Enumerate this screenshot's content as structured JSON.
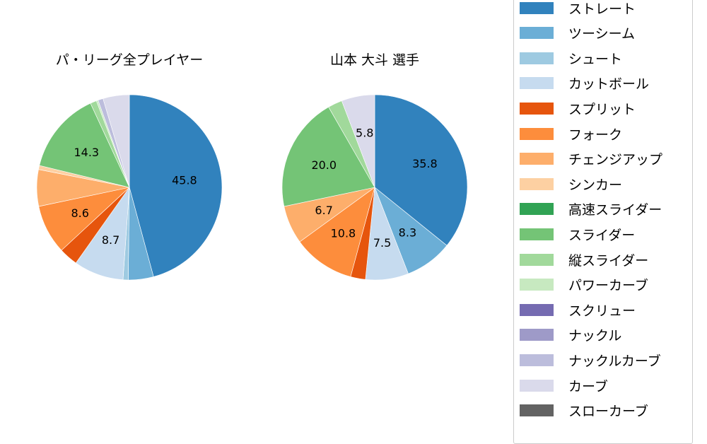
{
  "chart_data": [
    {
      "type": "pie",
      "title": "パ・リーグ全プレイヤー",
      "categories": [
        "ストレート",
        "ツーシーム",
        "シュート",
        "カットボール",
        "スプリット",
        "フォーク",
        "チェンジアップ",
        "シンカー",
        "高速スライダー",
        "スライダー",
        "縦スライダー",
        "パワーカーブ",
        "スクリュー",
        "ナックル",
        "ナックルカーブ",
        "カーブ",
        "スローカーブ"
      ],
      "values": [
        45.8,
        4.4,
        0.9,
        8.7,
        3.3,
        8.6,
        6.4,
        0.7,
        0.0,
        14.3,
        1.1,
        0.3,
        0.0,
        0.0,
        0.9,
        4.6,
        0.0
      ],
      "labels_shown": [
        "45.8",
        "8.7",
        "8.6",
        "14.3"
      ],
      "start_angle": "90 (12 o'clock), clockwise"
    },
    {
      "type": "pie",
      "title": "山本 大斗  選手",
      "categories": [
        "ストレート",
        "ツーシーム",
        "シュート",
        "カットボール",
        "スプリット",
        "フォーク",
        "チェンジアップ",
        "シンカー",
        "高速スライダー",
        "スライダー",
        "縦スライダー",
        "パワーカーブ",
        "スクリュー",
        "ナックル",
        "ナックルカーブ",
        "カーブ",
        "スローカーブ"
      ],
      "values": [
        35.8,
        8.3,
        0.0,
        7.5,
        2.6,
        10.8,
        6.7,
        0.0,
        0.0,
        20.0,
        2.5,
        0.0,
        0.0,
        0.0,
        0.0,
        5.8,
        0.0
      ],
      "labels_shown": [
        "35.8",
        "8.3",
        "7.5",
        "10.8",
        "6.7",
        "20.0",
        "5.8"
      ],
      "start_angle": "90 (12 o'clock), clockwise"
    }
  ],
  "titles": {
    "left": "パ・リーグ全プレイヤー",
    "right": "山本 大斗  選手"
  },
  "legend": [
    {
      "label": "ストレート",
      "color": "#3182bd"
    },
    {
      "label": "ツーシーム",
      "color": "#6baed6"
    },
    {
      "label": "シュート",
      "color": "#9ecae1"
    },
    {
      "label": "カットボール",
      "color": "#c6dbef"
    },
    {
      "label": "スプリット",
      "color": "#e6550d"
    },
    {
      "label": "フォーク",
      "color": "#fd8d3c"
    },
    {
      "label": "チェンジアップ",
      "color": "#fdae6b"
    },
    {
      "label": "シンカー",
      "color": "#fdd0a2"
    },
    {
      "label": "高速スライダー",
      "color": "#31a354"
    },
    {
      "label": "スライダー",
      "color": "#74c476"
    },
    {
      "label": "縦スライダー",
      "color": "#a1d99b"
    },
    {
      "label": "パワーカーブ",
      "color": "#c7e9c0"
    },
    {
      "label": "スクリュー",
      "color": "#756bb1"
    },
    {
      "label": "ナックル",
      "color": "#9e9ac8"
    },
    {
      "label": "ナックルカーブ",
      "color": "#bcbddc"
    },
    {
      "label": "カーブ",
      "color": "#dadaeb"
    },
    {
      "label": "スローカーブ",
      "color": "#636363"
    }
  ]
}
